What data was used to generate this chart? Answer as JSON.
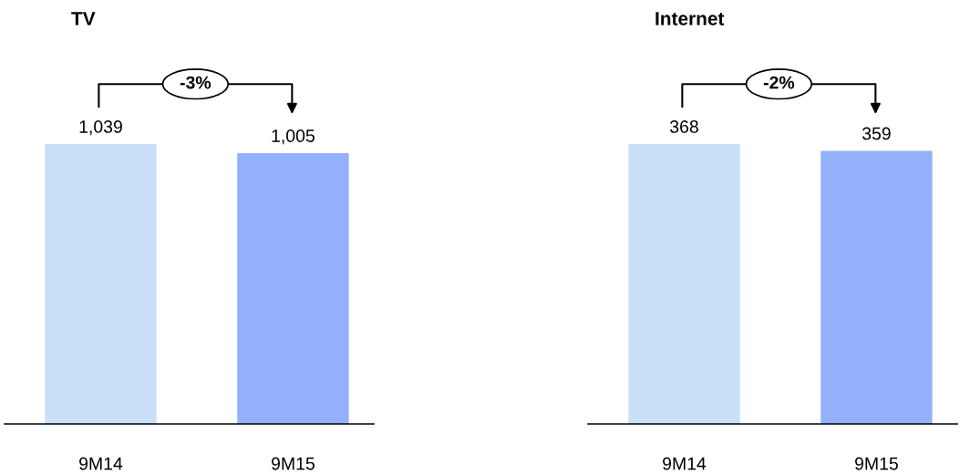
{
  "chart_data": [
    {
      "type": "bar",
      "title": "TV",
      "categories": [
        "9M14",
        "9M15"
      ],
      "values": [
        1039,
        1005
      ],
      "colors": [
        "#c9e0f8",
        "#93b1fb"
      ],
      "data_labels": true,
      "value_labels": [
        "1,039",
        "1,005"
      ],
      "annotations": [
        "-3%"
      ]
    },
    {
      "type": "bar",
      "title": "Internet",
      "categories": [
        "9M14",
        "9M15"
      ],
      "values": [
        368,
        359
      ],
      "colors": [
        "#c9e0f8",
        "#93b1fb"
      ],
      "data_labels": true,
      "value_labels": [
        "368",
        "359"
      ],
      "annotations": [
        "-2%"
      ]
    }
  ]
}
